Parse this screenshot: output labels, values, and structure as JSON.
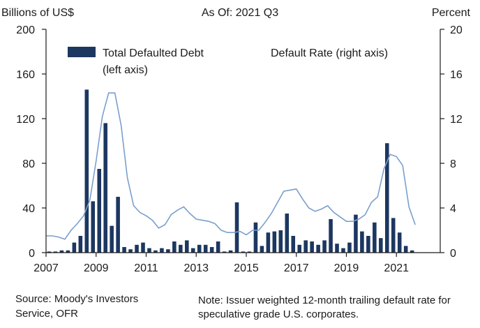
{
  "header": {
    "left_unit": "Billions of US$",
    "as_of": "As Of: 2021 Q3",
    "right_unit": "Percent"
  },
  "footer": {
    "source": "Source: Moody's Investors Service, OFR",
    "note": "Note: Issuer weighted 12-month trailing default rate for speculative grade U.S. corporates."
  },
  "colors": {
    "bar": "#1c3760",
    "line": "#7a9fcd",
    "axis": "#1a1a1a"
  },
  "chart_data": {
    "type": "bar",
    "title": "",
    "xlabel": "",
    "ylabel": "Billions of US$",
    "y2label": "Percent",
    "ylim": [
      0,
      200
    ],
    "y2lim": [
      0,
      20
    ],
    "yticks": [
      0,
      40,
      80,
      120,
      160,
      200
    ],
    "y2ticks": [
      0,
      4,
      8,
      12,
      16,
      20
    ],
    "x_tick_labels": [
      "2007",
      "2009",
      "2011",
      "2013",
      "2015",
      "2017",
      "2019",
      "2021"
    ],
    "x_ticks": [
      2007,
      2009,
      2011,
      2013,
      2015,
      2017,
      2019,
      2021
    ],
    "xlim": [
      2007,
      2022.75
    ],
    "legend": [
      {
        "label": "Total Defaulted Debt",
        "sublabel": "(left axis)",
        "kind": "bar"
      },
      {
        "label": "Default Rate (right axis)",
        "kind": "line"
      }
    ],
    "series": [
      {
        "name": "Total Defaulted Debt",
        "axis": "left",
        "type": "bar",
        "x": [
          "2007Q1",
          "2007Q2",
          "2007Q3",
          "2007Q4",
          "2008Q1",
          "2008Q2",
          "2008Q3",
          "2008Q4",
          "2009Q1",
          "2009Q2",
          "2009Q3",
          "2009Q4",
          "2010Q1",
          "2010Q2",
          "2010Q3",
          "2010Q4",
          "2011Q1",
          "2011Q2",
          "2011Q3",
          "2011Q4",
          "2012Q1",
          "2012Q2",
          "2012Q3",
          "2012Q4",
          "2013Q1",
          "2013Q2",
          "2013Q3",
          "2013Q4",
          "2014Q1",
          "2014Q2",
          "2014Q3",
          "2014Q4",
          "2015Q1",
          "2015Q2",
          "2015Q3",
          "2015Q4",
          "2016Q1",
          "2016Q2",
          "2016Q3",
          "2016Q4",
          "2017Q1",
          "2017Q2",
          "2017Q3",
          "2017Q4",
          "2018Q1",
          "2018Q2",
          "2018Q3",
          "2018Q4",
          "2019Q1",
          "2019Q2",
          "2019Q3",
          "2019Q4",
          "2020Q1",
          "2020Q2",
          "2020Q3",
          "2020Q4",
          "2021Q1",
          "2021Q2",
          "2021Q3"
        ],
        "values": [
          1,
          1,
          2,
          2,
          9,
          15,
          146,
          46,
          75,
          116,
          24,
          50,
          5,
          3,
          7,
          9,
          4,
          2,
          4,
          3,
          10,
          7,
          11,
          4,
          7,
          7,
          5,
          10,
          1,
          2,
          45,
          1,
          1,
          27,
          6,
          18,
          19,
          20,
          35,
          15,
          7,
          11,
          10,
          7,
          11,
          30,
          8,
          4,
          9,
          34,
          19,
          15,
          27,
          13,
          98,
          31,
          18,
          6,
          2
        ]
      },
      {
        "name": "Default Rate (right axis)",
        "axis": "right",
        "type": "line",
        "x": [
          2007.0,
          2007.25,
          2007.5,
          2007.75,
          2008.0,
          2008.25,
          2008.5,
          2008.75,
          2009.0,
          2009.25,
          2009.5,
          2009.75,
          2010.0,
          2010.25,
          2010.5,
          2010.75,
          2011.0,
          2011.25,
          2011.5,
          2011.75,
          2012.0,
          2012.25,
          2012.5,
          2012.75,
          2013.0,
          2013.25,
          2013.5,
          2013.75,
          2014.0,
          2014.25,
          2014.5,
          2014.75,
          2015.0,
          2015.25,
          2015.5,
          2015.75,
          2016.0,
          2016.25,
          2016.5,
          2016.75,
          2017.0,
          2017.25,
          2017.5,
          2017.75,
          2018.0,
          2018.25,
          2018.5,
          2018.75,
          2019.0,
          2019.25,
          2019.5,
          2019.75,
          2020.0,
          2020.25,
          2020.5,
          2020.75,
          2021.0,
          2021.25,
          2021.5,
          2021.75
        ],
        "values": [
          1.5,
          1.5,
          1.4,
          1.2,
          2.0,
          2.6,
          3.3,
          4.7,
          8.2,
          12.2,
          14.3,
          14.3,
          11.4,
          6.7,
          4.2,
          3.6,
          3.3,
          2.9,
          2.2,
          2.5,
          3.4,
          3.8,
          4.1,
          3.5,
          3.0,
          2.9,
          2.8,
          2.6,
          2.0,
          1.8,
          1.8,
          1.9,
          1.6,
          2.0,
          2.0,
          2.7,
          3.5,
          4.5,
          5.5,
          5.6,
          5.7,
          4.8,
          4.0,
          3.7,
          3.9,
          4.2,
          3.6,
          3.2,
          2.8,
          2.8,
          3.0,
          3.4,
          4.5,
          5.0,
          7.5,
          8.8,
          8.6,
          7.8,
          4.1,
          2.5
        ]
      }
    ],
    "grid": false,
    "legend_position": "top"
  }
}
